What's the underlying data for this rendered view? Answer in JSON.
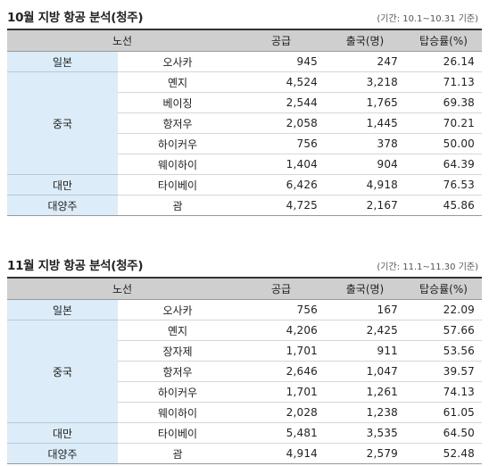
{
  "oct": {
    "title": "10월 지방 항공 분석(청주)",
    "note": "(기간: 10.1~10.31 기준)",
    "headers": {
      "route": "노선",
      "supply": "공급",
      "departures": "출국(명)",
      "load_factor": "탑승률(%)"
    },
    "rows": [
      {
        "region": "일본",
        "route": "오사카",
        "supply": "945",
        "departures": "247",
        "load_factor": "26.14"
      },
      {
        "region": "중국",
        "route": "옌지",
        "supply": "4,524",
        "departures": "3,218",
        "load_factor": "71.13"
      },
      {
        "route": "베이징",
        "supply": "2,544",
        "departures": "1,765",
        "load_factor": "69.38"
      },
      {
        "route": "항저우",
        "supply": "2,058",
        "departures": "1,445",
        "load_factor": "70.21"
      },
      {
        "route": "하이커우",
        "supply": "756",
        "departures": "378",
        "load_factor": "50.00"
      },
      {
        "route": "웨이하이",
        "supply": "1,404",
        "departures": "904",
        "load_factor": "64.39"
      },
      {
        "region": "대만",
        "route": "타이베이",
        "supply": "6,426",
        "departures": "4,918",
        "load_factor": "76.53"
      },
      {
        "region": "대양주",
        "route": "괌",
        "supply": "4,725",
        "departures": "2,167",
        "load_factor": "45.86"
      }
    ]
  },
  "nov": {
    "title": "11월 지방 항공 분석(청주)",
    "note": "(기간: 11.1~11.30 기준)",
    "headers": {
      "route": "노선",
      "supply": "공급",
      "departures": "출국(명)",
      "load_factor": "탑승률(%)"
    },
    "rows": [
      {
        "region": "일본",
        "route": "오사카",
        "supply": "756",
        "departures": "167",
        "load_factor": "22.09"
      },
      {
        "region": "중국",
        "route": "옌지",
        "supply": "4,206",
        "departures": "2,425",
        "load_factor": "57.66"
      },
      {
        "route": "장자제",
        "supply": "1,701",
        "departures": "911",
        "load_factor": "53.56"
      },
      {
        "route": "항저우",
        "supply": "2,646",
        "departures": "1,047",
        "load_factor": "39.57"
      },
      {
        "route": "하이커우",
        "supply": "1,701",
        "departures": "1,261",
        "load_factor": "74.13"
      },
      {
        "route": "웨이하이",
        "supply": "2,028",
        "departures": "1,238",
        "load_factor": "61.05"
      },
      {
        "region": "대만",
        "route": "타이베이",
        "supply": "5,481",
        "departures": "3,535",
        "load_factor": "64.50"
      },
      {
        "region": "대양주",
        "route": "괌",
        "supply": "4,914",
        "departures": "2,579",
        "load_factor": "52.48"
      }
    ]
  }
}
